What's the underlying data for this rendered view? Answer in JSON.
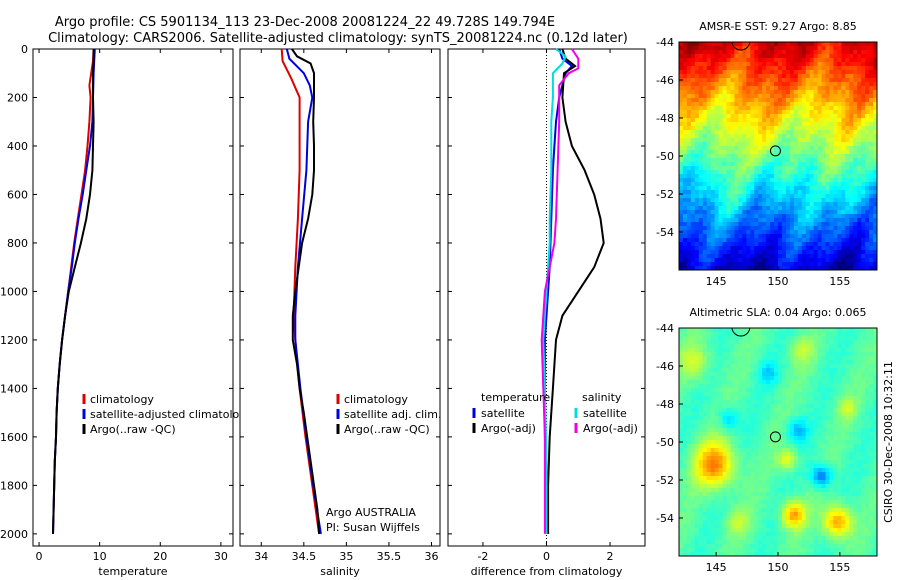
{
  "header": {
    "line1": "Argo profile: CS 5901134_113 23-Dec-2008 20081224_22 49.728S 149.794E",
    "line2": "Climatology: CARS2006. Satellite-adjusted climatology: synTS_20081224.nc (0.12d later)"
  },
  "footer": {
    "credit": "CSIRO 30-Dec-2008 10:32:11",
    "float_org": "Argo AUSTRALIA",
    "float_pi": "PI: Susan Wijffels"
  },
  "colors": {
    "climatology": "#dd0000",
    "satellite": "#0000dd",
    "argo": "#000000",
    "salinity_satellite": "#00dddd",
    "salinity_argo": "#ee00ee"
  },
  "chart_data": [
    {
      "type": "line",
      "id": "temperature",
      "title": "",
      "xlabel": "temperature",
      "ylabel": "",
      "xlim": [
        -1,
        32
      ],
      "ylim": [
        2050,
        0
      ],
      "y_reversed": true,
      "xticks": [
        0,
        10,
        20,
        30
      ],
      "yticks": [
        0,
        200,
        400,
        600,
        800,
        1000,
        1200,
        1400,
        1600,
        1800,
        2000
      ],
      "legend": [
        "climatology",
        "satellite-adjusted climatology",
        "Argo(..raw -QC)"
      ],
      "series": [
        {
          "name": "climatology",
          "color": "#dd0000",
          "points": [
            [
              9.0,
              0
            ],
            [
              8.9,
              50
            ],
            [
              8.6,
              100
            ],
            [
              8.3,
              150
            ],
            [
              8.5,
              200
            ],
            [
              8.3,
              300
            ],
            [
              8.0,
              400
            ],
            [
              7.6,
              500
            ],
            [
              7.0,
              600
            ],
            [
              6.4,
              700
            ],
            [
              5.8,
              800
            ],
            [
              5.3,
              900
            ],
            [
              4.8,
              1000
            ],
            [
              4.3,
              1100
            ],
            [
              3.8,
              1200
            ],
            [
              3.4,
              1300
            ],
            [
              3.1,
              1400
            ],
            [
              2.9,
              1500
            ],
            [
              2.8,
              1600
            ],
            [
              2.6,
              1700
            ],
            [
              2.5,
              1800
            ],
            [
              2.4,
              1900
            ],
            [
              2.3,
              2000
            ]
          ]
        },
        {
          "name": "satellite-adjusted climatology",
          "color": "#0000dd",
          "points": [
            [
              9.2,
              0
            ],
            [
              9.1,
              50
            ],
            [
              9.0,
              100
            ],
            [
              8.9,
              200
            ],
            [
              8.8,
              300
            ],
            [
              8.4,
              400
            ],
            [
              7.8,
              500
            ],
            [
              7.2,
              600
            ],
            [
              6.5,
              700
            ],
            [
              5.9,
              800
            ],
            [
              5.4,
              900
            ],
            [
              4.8,
              1000
            ],
            [
              4.3,
              1100
            ],
            [
              3.8,
              1200
            ],
            [
              3.4,
              1300
            ],
            [
              3.1,
              1400
            ],
            [
              2.9,
              1500
            ],
            [
              2.8,
              1600
            ],
            [
              2.6,
              1700
            ],
            [
              2.5,
              1800
            ],
            [
              2.4,
              1900
            ],
            [
              2.3,
              2000
            ]
          ]
        },
        {
          "name": "Argo(..raw -QC)",
          "color": "#000000",
          "points": [
            [
              9.0,
              0
            ],
            [
              9.0,
              50
            ],
            [
              8.9,
              100
            ],
            [
              8.9,
              200
            ],
            [
              9.0,
              300
            ],
            [
              8.9,
              400
            ],
            [
              8.8,
              500
            ],
            [
              8.4,
              600
            ],
            [
              7.8,
              700
            ],
            [
              6.9,
              800
            ],
            [
              5.9,
              900
            ],
            [
              4.9,
              1000
            ],
            [
              4.3,
              1100
            ],
            [
              3.8,
              1200
            ],
            [
              3.4,
              1300
            ],
            [
              3.1,
              1400
            ],
            [
              2.9,
              1500
            ],
            [
              2.8,
              1600
            ],
            [
              2.6,
              1700
            ],
            [
              2.5,
              1800
            ],
            [
              2.4,
              1900
            ],
            [
              2.3,
              2000
            ]
          ]
        }
      ]
    },
    {
      "type": "line",
      "id": "salinity",
      "title": "",
      "xlabel": "salinity",
      "ylabel": "",
      "xlim": [
        33.75,
        36.1
      ],
      "ylim": [
        2050,
        0
      ],
      "y_reversed": true,
      "xticks": [
        34,
        34.5,
        35,
        35.5,
        36
      ],
      "legend": [
        "climatology",
        "satellite adj. clim.",
        "Argo(..raw -QC)"
      ],
      "series": [
        {
          "name": "climatology",
          "color": "#dd0000",
          "points": [
            [
              34.24,
              0
            ],
            [
              34.25,
              50
            ],
            [
              34.35,
              120
            ],
            [
              34.45,
              200
            ],
            [
              34.45,
              300
            ],
            [
              34.45,
              500
            ],
            [
              34.43,
              700
            ],
            [
              34.4,
              900
            ],
            [
              34.38,
              1100
            ],
            [
              34.4,
              1200
            ],
            [
              34.45,
              1400
            ],
            [
              34.52,
              1600
            ],
            [
              34.6,
              1800
            ],
            [
              34.68,
              2000
            ]
          ]
        },
        {
          "name": "satellite adj. clim.",
          "color": "#0000dd",
          "points": [
            [
              34.3,
              0
            ],
            [
              34.33,
              40
            ],
            [
              34.5,
              100
            ],
            [
              34.57,
              150
            ],
            [
              34.6,
              200
            ],
            [
              34.55,
              300
            ],
            [
              34.53,
              500
            ],
            [
              34.48,
              700
            ],
            [
              34.43,
              900
            ],
            [
              34.4,
              1100
            ],
            [
              34.4,
              1200
            ],
            [
              34.46,
              1400
            ],
            [
              34.53,
              1600
            ],
            [
              34.61,
              1800
            ],
            [
              34.7,
              2000
            ]
          ]
        },
        {
          "name": "Argo(..raw -QC)",
          "color": "#000000",
          "points": [
            [
              34.36,
              0
            ],
            [
              34.42,
              30
            ],
            [
              34.58,
              60
            ],
            [
              34.62,
              100
            ],
            [
              34.62,
              200
            ],
            [
              34.61,
              300
            ],
            [
              34.62,
              400
            ],
            [
              34.62,
              500
            ],
            [
              34.6,
              600
            ],
            [
              34.55,
              700
            ],
            [
              34.48,
              800
            ],
            [
              34.44,
              900
            ],
            [
              34.4,
              1000
            ],
            [
              34.37,
              1100
            ],
            [
              34.37,
              1200
            ],
            [
              34.42,
              1300
            ],
            [
              34.45,
              1400
            ],
            [
              34.5,
              1500
            ],
            [
              34.54,
              1600
            ],
            [
              34.58,
              1700
            ],
            [
              34.62,
              1800
            ],
            [
              34.66,
              1900
            ],
            [
              34.68,
              2000
            ]
          ]
        }
      ]
    },
    {
      "type": "line",
      "id": "difference",
      "title": "",
      "xlabel": "difference from climatology",
      "ylabel": "",
      "xlim": [
        -3.1,
        3.1
      ],
      "ylim": [
        2050,
        0
      ],
      "y_reversed": true,
      "xticks": [
        -2,
        0,
        2
      ],
      "legend_left_title": "temperature",
      "legend_right_title": "salinity",
      "legend": [
        "satellite",
        "Argo(-adj)",
        "satellite",
        "Argo(-adj)"
      ],
      "series": [
        {
          "name": "temperature satellite",
          "color": "#0000dd",
          "points": [
            [
              0.4,
              0
            ],
            [
              0.5,
              40
            ],
            [
              0.8,
              70
            ],
            [
              0.6,
              100
            ],
            [
              0.4,
              200
            ],
            [
              0.3,
              300
            ],
            [
              0.25,
              400
            ],
            [
              0.2,
              500
            ],
            [
              0.15,
              700
            ],
            [
              0.1,
              900
            ],
            [
              0.05,
              1000
            ],
            [
              0.0,
              1100
            ],
            [
              -0.05,
              1200
            ],
            [
              -0.05,
              1400
            ],
            [
              -0.05,
              1600
            ],
            [
              0.0,
              1800
            ],
            [
              0.05,
              2000
            ]
          ]
        },
        {
          "name": "temperature Argo(-adj)",
          "color": "#000000",
          "points": [
            [
              0.5,
              0
            ],
            [
              0.6,
              40
            ],
            [
              0.9,
              70
            ],
            [
              0.55,
              100
            ],
            [
              0.5,
              200
            ],
            [
              0.6,
              300
            ],
            [
              0.8,
              400
            ],
            [
              1.2,
              500
            ],
            [
              1.5,
              600
            ],
            [
              1.7,
              700
            ],
            [
              1.8,
              800
            ],
            [
              1.5,
              900
            ],
            [
              1.0,
              1000
            ],
            [
              0.5,
              1100
            ],
            [
              0.3,
              1200
            ],
            [
              0.2,
              1400
            ],
            [
              0.1,
              1600
            ],
            [
              0.05,
              1800
            ],
            [
              0.05,
              2000
            ]
          ]
        },
        {
          "name": "salinity satellite",
          "color": "#00dddd",
          "points": [
            [
              0.3,
              0
            ],
            [
              0.6,
              30
            ],
            [
              0.5,
              60
            ],
            [
              0.2,
              100
            ],
            [
              0.2,
              200
            ],
            [
              0.15,
              300
            ],
            [
              0.15,
              500
            ],
            [
              0.1,
              700
            ],
            [
              0.1,
              800
            ],
            [
              0.05,
              900
            ],
            [
              0.0,
              1000
            ],
            [
              -0.05,
              1100
            ],
            [
              -0.1,
              1200
            ],
            [
              -0.05,
              1400
            ],
            [
              0.0,
              1700
            ],
            [
              0.0,
              1850
            ],
            [
              0.0,
              2000
            ]
          ]
        },
        {
          "name": "salinity Argo(-adj)",
          "color": "#ee00ee",
          "points": [
            [
              0.8,
              0
            ],
            [
              1.0,
              40
            ],
            [
              1.0,
              80
            ],
            [
              0.7,
              100
            ],
            [
              0.4,
              150
            ],
            [
              0.4,
              300
            ],
            [
              0.35,
              500
            ],
            [
              0.3,
              700
            ],
            [
              0.25,
              800
            ],
            [
              0.1,
              900
            ],
            [
              -0.05,
              1000
            ],
            [
              -0.1,
              1100
            ],
            [
              -0.15,
              1200
            ],
            [
              -0.1,
              1400
            ],
            [
              -0.05,
              1600
            ],
            [
              -0.05,
              1800
            ],
            [
              -0.05,
              2000
            ]
          ]
        }
      ]
    },
    {
      "type": "heatmap",
      "id": "sst_map",
      "title": "AMSR-E SST: 9.27 Argo: 8.85",
      "xlim": [
        142,
        158
      ],
      "ylim": [
        -56,
        -44
      ],
      "xticks": [
        145,
        150,
        155
      ],
      "yticks": [
        -44,
        -46,
        -48,
        -50,
        -52,
        -54
      ],
      "marker": {
        "lon": 149.794,
        "lat": -49.728
      }
    },
    {
      "type": "heatmap",
      "id": "sla_map",
      "title": "Altimetric SLA: 0.04 Argo: 0.065",
      "xlim": [
        142,
        158
      ],
      "ylim": [
        -56,
        -44
      ],
      "xticks": [
        145,
        150,
        155
      ],
      "yticks": [
        -44,
        -46,
        -48,
        -50,
        -52,
        -54
      ],
      "marker": {
        "lon": 149.794,
        "lat": -49.728
      }
    }
  ]
}
